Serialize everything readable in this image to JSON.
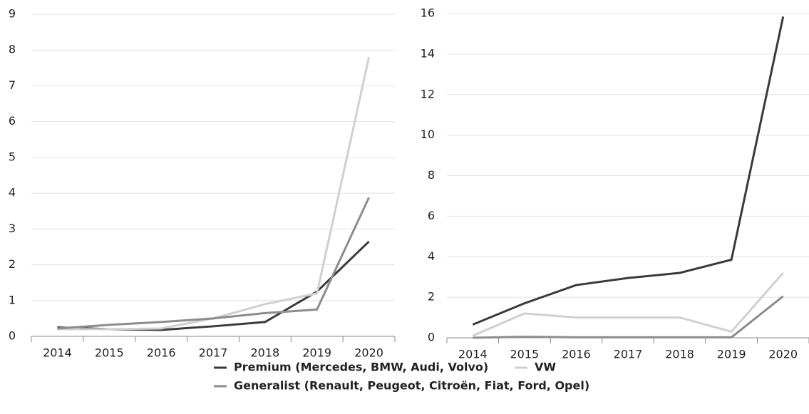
{
  "chart_data": [
    {
      "type": "line",
      "categories": [
        "2014",
        "2015",
        "2016",
        "2017",
        "2018",
        "2019",
        "2020"
      ],
      "series": [
        {
          "name": "Premium (Mercedes, BMW, Audi, Volvo)",
          "color": "#3a3a3a",
          "values": [
            0.25,
            0.2,
            0.18,
            0.28,
            0.4,
            1.25,
            2.65
          ]
        },
        {
          "name": "VW",
          "color": "#d0d0d0",
          "values": [
            0.2,
            0.2,
            0.22,
            0.5,
            0.9,
            1.2,
            7.8
          ]
        },
        {
          "name": "Generalist (Renault, Peugeot, Citroën, Fiat, Ford, Opel)",
          "color": "#8c8c8c",
          "values": [
            0.22,
            0.32,
            0.4,
            0.5,
            0.65,
            0.75,
            3.88
          ]
        }
      ],
      "ylim": [
        0,
        9
      ],
      "yticks": [
        0,
        1,
        2,
        3,
        4,
        5,
        6,
        7,
        8,
        9
      ],
      "grid": true
    },
    {
      "type": "line",
      "categories": [
        "2014",
        "2015",
        "2016",
        "2017",
        "2018",
        "2019",
        "2020"
      ],
      "series": [
        {
          "color": "#3a3a3a",
          "values": [
            0.65,
            1.7,
            2.6,
            2.95,
            3.2,
            3.85,
            15.85
          ]
        },
        {
          "color": "#d0d0d0",
          "values": [
            0.1,
            1.2,
            1.0,
            1.0,
            1.0,
            0.3,
            3.2
          ]
        },
        {
          "color": "#8c8c8c",
          "values": [
            0.0,
            0.05,
            0.02,
            0.02,
            0.02,
            0.02,
            2.05
          ]
        }
      ],
      "ylim": [
        0,
        16
      ],
      "yticks": [
        0,
        2,
        4,
        6,
        8,
        10,
        12,
        14,
        16
      ],
      "grid": true
    }
  ]
}
